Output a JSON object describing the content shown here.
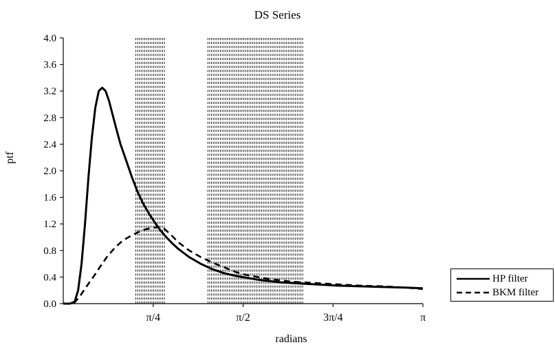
{
  "chart_data": {
    "type": "line",
    "title": "DS Series",
    "xlabel": "radians",
    "ylabel": "ptf",
    "xlim": [
      0,
      3.14159
    ],
    "ylim": [
      0,
      4.0
    ],
    "y_ticks": [
      "0.0",
      "0.4",
      "0.8",
      "1.2",
      "1.6",
      "2.0",
      "2.4",
      "2.8",
      "3.2",
      "3.6",
      "4.0"
    ],
    "x_ticks": [
      {
        "value": 0.7854,
        "label": "π/4"
      },
      {
        "value": 1.5708,
        "label": "π/2"
      },
      {
        "value": 2.3562,
        "label": "3π/4"
      },
      {
        "value": 3.14159,
        "label": "π"
      }
    ],
    "shaded_bands": [
      {
        "from": 0.628,
        "to": 0.898
      },
      {
        "from": 1.257,
        "to": 2.094
      }
    ],
    "series": [
      {
        "name": "HP filter",
        "style": "solid",
        "x": [
          0.0,
          0.06,
          0.1,
          0.13,
          0.16,
          0.19,
          0.22,
          0.25,
          0.28,
          0.31,
          0.34,
          0.37,
          0.4,
          0.43,
          0.46,
          0.5,
          0.55,
          0.6,
          0.65,
          0.7,
          0.75,
          0.8,
          0.85,
          0.9,
          0.95,
          1.0,
          1.1,
          1.2,
          1.3,
          1.4,
          1.5,
          1.6,
          1.7,
          1.8,
          1.9,
          2.0,
          2.2,
          2.4,
          2.6,
          2.8,
          3.0,
          3.14
        ],
        "y": [
          0.0,
          0.0,
          0.03,
          0.2,
          0.6,
          1.2,
          1.9,
          2.5,
          2.95,
          3.2,
          3.25,
          3.2,
          3.05,
          2.85,
          2.65,
          2.4,
          2.15,
          1.9,
          1.68,
          1.5,
          1.35,
          1.22,
          1.1,
          1.0,
          0.91,
          0.83,
          0.7,
          0.6,
          0.52,
          0.46,
          0.42,
          0.39,
          0.36,
          0.34,
          0.32,
          0.31,
          0.29,
          0.27,
          0.26,
          0.25,
          0.24,
          0.23
        ]
      },
      {
        "name": "BKM filter",
        "style": "dashed",
        "x": [
          0.0,
          0.06,
          0.1,
          0.14,
          0.18,
          0.22,
          0.27,
          0.32,
          0.38,
          0.45,
          0.52,
          0.6,
          0.66,
          0.72,
          0.78,
          0.84,
          0.88,
          0.9,
          0.95,
          1.0,
          1.1,
          1.2,
          1.3,
          1.4,
          1.5,
          1.6,
          1.7,
          1.8,
          1.9,
          2.0,
          2.2,
          2.4,
          2.6,
          2.8,
          3.0,
          3.14
        ],
        "y": [
          0.0,
          0.0,
          0.02,
          0.1,
          0.2,
          0.3,
          0.42,
          0.55,
          0.7,
          0.84,
          0.95,
          1.03,
          1.08,
          1.12,
          1.14,
          1.15,
          1.13,
          1.1,
          1.02,
          0.93,
          0.8,
          0.7,
          0.62,
          0.55,
          0.48,
          0.43,
          0.4,
          0.37,
          0.35,
          0.33,
          0.31,
          0.29,
          0.27,
          0.26,
          0.24,
          0.22
        ]
      }
    ]
  }
}
